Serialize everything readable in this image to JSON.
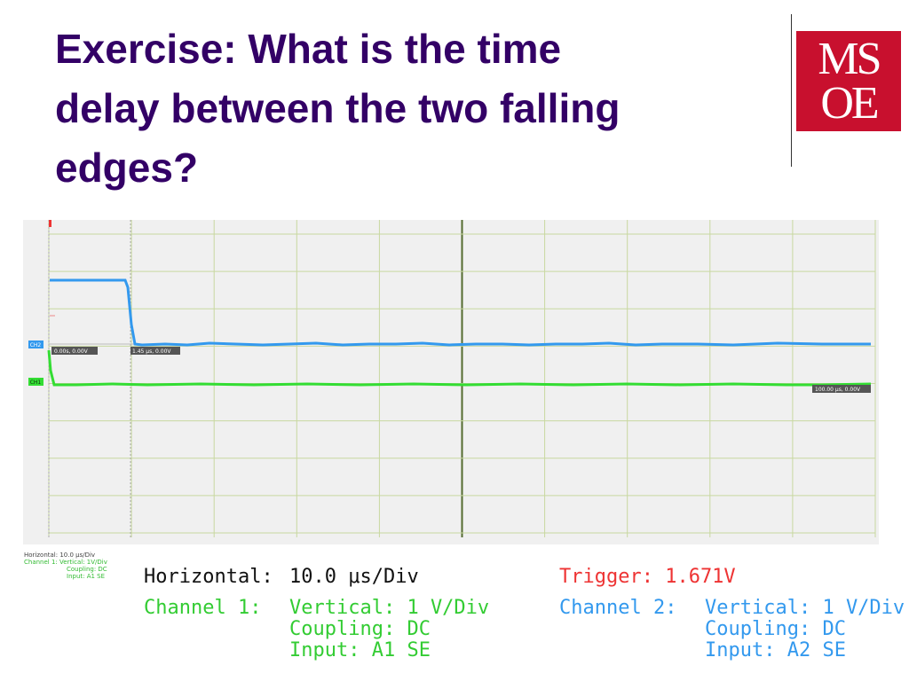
{
  "slide": {
    "title_line1": "Exercise: What is the time",
    "title_line2": "delay between the two falling",
    "title_line3": "edges?"
  },
  "logo": {
    "row1": "MS",
    "row2": "OE"
  },
  "scope": {
    "ch2_tag": "CH2",
    "ch1_tag": "CH1",
    "cursor_a_readout": "0.00s, 0.00V",
    "cursor_b_readout": "1.45 μs, 0.00V",
    "end_readout": "100.00 μs, 0.00V",
    "colors": {
      "ch1": "#33dd33",
      "ch2": "#3399ee",
      "grid": "#c8d8a0",
      "trigger": "#ee3333"
    }
  },
  "mini_legend": {
    "line1": "Horizontal:  10.0 μs/Div",
    "line2": "Channel 1:  Vertical: 1V/Div",
    "line3": "Coupling: DC",
    "line4": "Input: A1 SE"
  },
  "settings": {
    "horizontal_label": "Horizontal:",
    "horizontal_value": "10.0 μs/Div",
    "trigger": "Trigger: 1.671V",
    "ch1_label": "Channel 1:",
    "ch1_vertical": "Vertical: 1 V/Div",
    "ch1_coupling": "Coupling: DC",
    "ch1_input": "Input: A1 SE",
    "ch2_label": "Channel 2:",
    "ch2_vertical": "Vertical: 1 V/Div",
    "ch2_coupling": "Coupling: DC",
    "ch2_input": "Input: A2 SE"
  }
}
